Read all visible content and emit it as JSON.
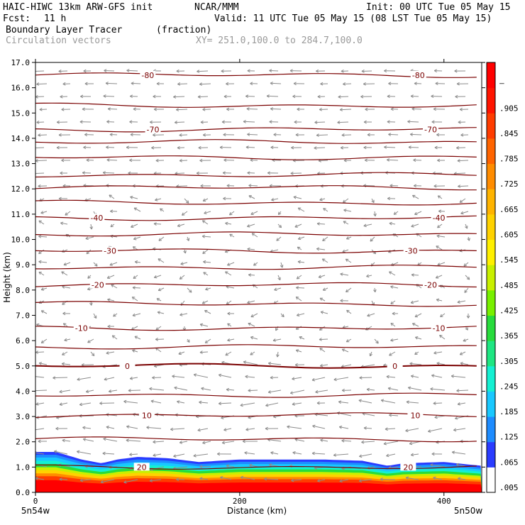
{
  "header": {
    "model": "HAIC-HIWC 13km ARW-GFS init",
    "center": "NCAR/MMM",
    "init": "Init: 00 UTC Tue 05 May 15",
    "fcst_label": "Fcst:",
    "fcst_value": "11 h",
    "valid": "Valid: 11 UTC Tue 05 May 15 (08 LST Tue 05 May 15)",
    "field": "Boundary Layer Tracer",
    "field_units": "(fraction)",
    "vectors": "Circulation vectors",
    "xy": "XY= 251.0,100.0 to 284.7,100.0"
  },
  "chart_data": {
    "type": "heatmap",
    "xlabel": "Distance (km)",
    "ylabel": "Height (km)",
    "xlim": [
      0,
      437
    ],
    "ylim": [
      0,
      17
    ],
    "x_ticks": [
      0,
      200,
      400
    ],
    "y_ticks": [
      0.0,
      1.0,
      2.0,
      3.0,
      4.0,
      5.0,
      6.0,
      7.0,
      8.0,
      9.0,
      10.0,
      11.0,
      12.0,
      13.0,
      14.0,
      15.0,
      16.0,
      17.0
    ],
    "y_tick_labels": [
      "0.0",
      "1.0",
      "2.0",
      "3.0",
      "4.0",
      "5.0",
      "6.0",
      "7.0",
      "8.0",
      "9.0",
      "10.0",
      "11.0",
      "12.0",
      "13.0",
      "14.0",
      "15.0",
      "16.0",
      "17.0"
    ],
    "left_location": "5n54w",
    "right_location": "5n50w",
    "colorbar_labels": [
      ".005",
      ".065",
      ".125",
      ".185",
      ".245",
      ".305",
      ".365",
      ".425",
      ".485",
      ".545",
      ".605",
      ".665",
      ".725",
      ".785",
      ".845",
      ".905",
      "–"
    ],
    "colorbar_colors": [
      "#ffffff",
      "#2a3cff",
      "#1e8cff",
      "#19c8ff",
      "#14f0d2",
      "#1ee682",
      "#28dc3c",
      "#78f000",
      "#c8f000",
      "#fff000",
      "#ffd200",
      "#ffb400",
      "#ff8c00",
      "#ff6400",
      "#ff3c00",
      "#ff1400",
      "#ff0000"
    ],
    "contour_color": "#7a0000",
    "vector_color": "#8c8c8c",
    "temperature_contours": [
      {
        "value": -80,
        "height": 16.5,
        "labels": [
          {
            "x": 110,
            "text": "-80"
          },
          {
            "x": 375,
            "text": "-80"
          }
        ]
      },
      {
        "value": -75,
        "height": 15.3,
        "labels": []
      },
      {
        "value": -70,
        "height": 14.35,
        "labels": [
          {
            "x": 115,
            "text": "-70"
          },
          {
            "x": 387,
            "text": "-70"
          }
        ]
      },
      {
        "value": -65,
        "height": 13.85,
        "labels": []
      },
      {
        "value": -60,
        "height": 13.25,
        "labels": []
      },
      {
        "value": -55,
        "height": 12.55,
        "labels": []
      },
      {
        "value": -50,
        "height": 12.05,
        "labels": []
      },
      {
        "value": -45,
        "height": 11.45,
        "labels": []
      },
      {
        "value": -40,
        "height": 10.85,
        "labels": [
          {
            "x": 60,
            "text": "-40"
          },
          {
            "x": 395,
            "text": "-40"
          }
        ]
      },
      {
        "value": -35,
        "height": 10.2,
        "labels": []
      },
      {
        "value": -30,
        "height": 9.55,
        "labels": [
          {
            "x": 73,
            "text": "-30"
          },
          {
            "x": 368,
            "text": "-30"
          }
        ]
      },
      {
        "value": -25,
        "height": 8.9,
        "labels": []
      },
      {
        "value": -20,
        "height": 8.2,
        "labels": [
          {
            "x": 61,
            "text": "-20"
          },
          {
            "x": 387,
            "text": "-20"
          }
        ]
      },
      {
        "value": -15,
        "height": 7.45,
        "labels": []
      },
      {
        "value": -10,
        "height": 6.5,
        "labels": [
          {
            "x": 45,
            "text": "-10"
          },
          {
            "x": 395,
            "text": "-10"
          }
        ]
      },
      {
        "value": -5,
        "height": 5.75,
        "labels": []
      },
      {
        "value": 0,
        "height": 5.0,
        "labels": [
          {
            "x": 90,
            "text": "0"
          },
          {
            "x": 352,
            "text": "0"
          }
        ]
      },
      {
        "value": 5,
        "height": 3.85,
        "labels": []
      },
      {
        "value": 10,
        "height": 3.05,
        "labels": [
          {
            "x": 109,
            "text": "10"
          },
          {
            "x": 372,
            "text": "10"
          }
        ]
      },
      {
        "value": 15,
        "height": 2.1,
        "labels": []
      },
      {
        "value": 20,
        "height": 1.0,
        "labels": [
          {
            "x": 104,
            "text": "20"
          },
          {
            "x": 365,
            "text": "20"
          }
        ]
      }
    ],
    "tracer_top_heights": [
      [
        0,
        1.6
      ],
      [
        20,
        1.6
      ],
      [
        45,
        1.3
      ],
      [
        65,
        1.15
      ],
      [
        80,
        1.3
      ],
      [
        100,
        1.4
      ],
      [
        130,
        1.35
      ],
      [
        160,
        1.2
      ],
      [
        200,
        1.3
      ],
      [
        240,
        1.3
      ],
      [
        280,
        1.3
      ],
      [
        320,
        1.25
      ],
      [
        345,
        1.05
      ],
      [
        360,
        1.15
      ],
      [
        400,
        1.2
      ],
      [
        437,
        1.05
      ]
    ]
  }
}
